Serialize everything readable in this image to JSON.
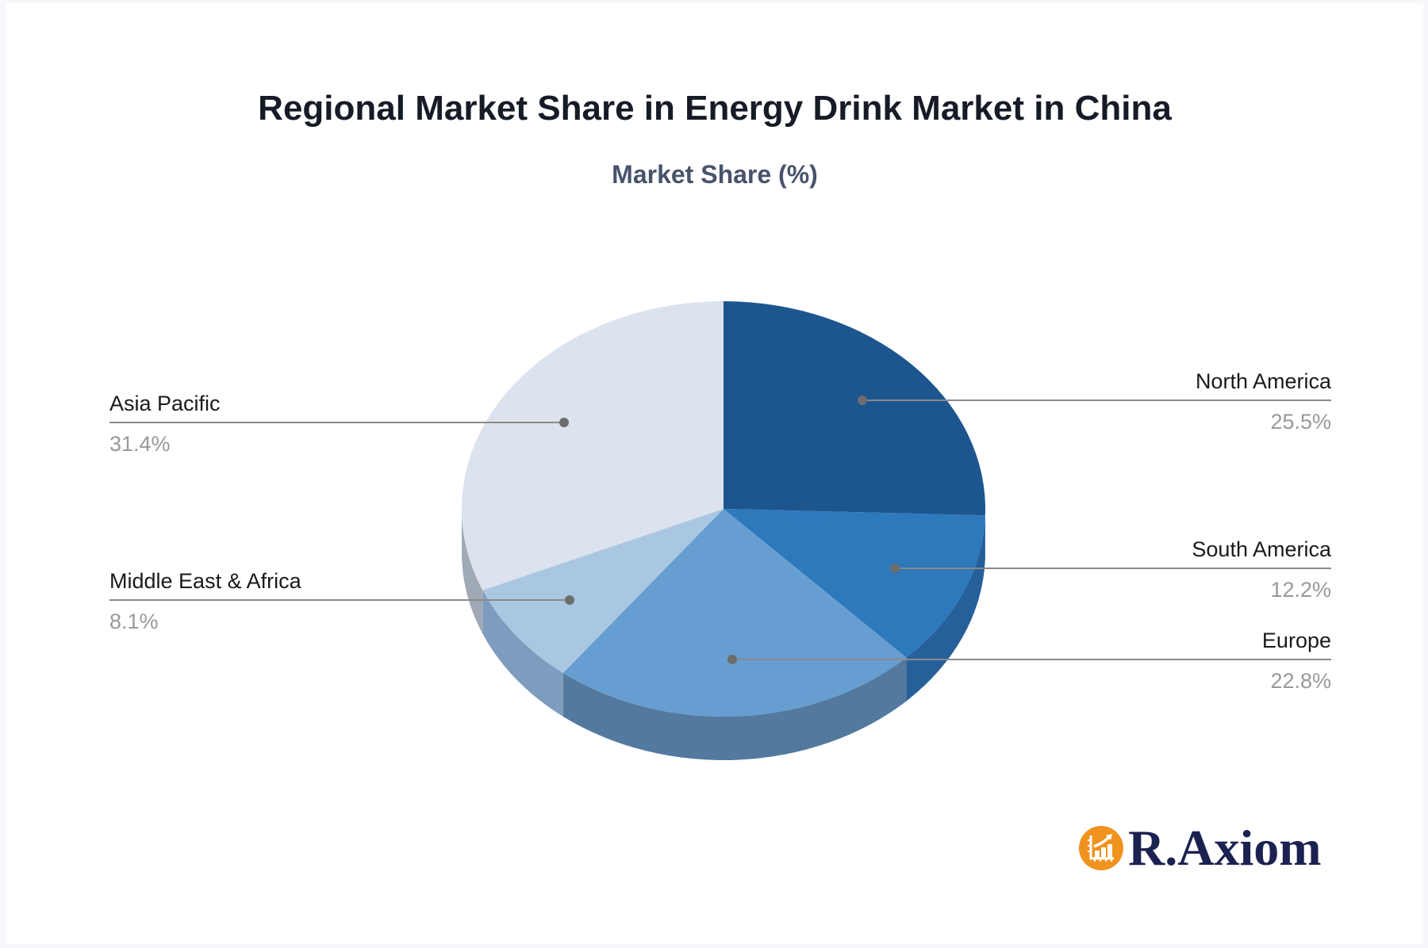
{
  "page": {
    "title": "Regional Market Share in Energy Drink Market in China",
    "subtitle": "Market Share (%)"
  },
  "chart_data": {
    "type": "pie",
    "style": "3d",
    "title": "Regional Market Share in Energy Drink Market in China",
    "subtitle": "Market Share (%)",
    "unit": "%",
    "start_angle_deg": 0,
    "direction": "clockwise",
    "legend_position": "none",
    "categories": [
      "North America",
      "South America",
      "Europe",
      "Middle East & Africa",
      "Asia Pacific"
    ],
    "values": [
      25.5,
      12.2,
      22.8,
      8.1,
      31.4
    ],
    "labels_displayed": [
      "25.5%",
      "12.2%",
      "22.8%",
      "8.1%",
      "31.4%"
    ],
    "colors": [
      "#1D568F",
      "#2E78BC",
      "#679ED1",
      "#AAC7E2",
      "#DCE3EE"
    ],
    "side_colors": [
      "#194B7E",
      "#25609A",
      "#53799E",
      "#7E9DBE",
      "#9FAAB6"
    ],
    "callout_line_color": "#8a8a8a",
    "callout_dot_color": "#6d6d6d"
  },
  "branding": {
    "logo_text": "R.Axiom",
    "logo_icon": "bar-chart-growth-icon",
    "logo_circle_color": "#F0921E",
    "logo_text_color": "#1B2150"
  }
}
